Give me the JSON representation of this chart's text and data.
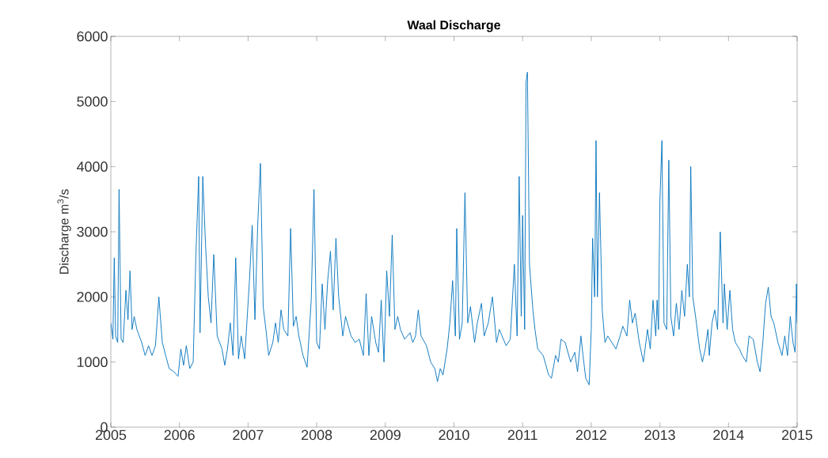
{
  "chart_data": {
    "type": "line",
    "title": "Waal Discharge",
    "ylabel": "Discharge m$^{3}$/s",
    "xlim": [
      2005,
      2015
    ],
    "ylim": [
      0,
      6000
    ],
    "xticks": [
      2005,
      2006,
      2007,
      2008,
      2009,
      2010,
      2011,
      2012,
      2013,
      2014,
      2015
    ],
    "yticks": [
      0,
      1000,
      2000,
      3000,
      4000,
      5000,
      6000
    ],
    "grid": false,
    "marker": "none",
    "line_style": "solid",
    "series": [
      {
        "color": "#0072bd",
        "x": [
          2005.0,
          2005.03,
          2005.05,
          2005.07,
          2005.1,
          2005.12,
          2005.15,
          2005.18,
          2005.22,
          2005.25,
          2005.28,
          2005.31,
          2005.34,
          2005.38,
          2005.45,
          2005.5,
          2005.55,
          2005.6,
          2005.65,
          2005.7,
          2005.75,
          2005.8,
          2005.85,
          2005.92,
          2005.98,
          2006.02,
          2006.06,
          2006.1,
          2006.15,
          2006.2,
          2006.24,
          2006.28,
          2006.3,
          2006.34,
          2006.38,
          2006.42,
          2006.46,
          2006.5,
          2006.55,
          2006.62,
          2006.66,
          2006.7,
          2006.74,
          2006.78,
          2006.82,
          2006.86,
          2006.9,
          2006.95,
          2007.02,
          2007.06,
          2007.1,
          2007.14,
          2007.18,
          2007.22,
          2007.26,
          2007.3,
          2007.36,
          2007.4,
          2007.44,
          2007.48,
          2007.52,
          2007.58,
          2007.62,
          2007.66,
          2007.7,
          2007.74,
          2007.8,
          2007.86,
          2007.92,
          2007.96,
          2008.0,
          2008.04,
          2008.08,
          2008.12,
          2008.16,
          2008.2,
          2008.24,
          2008.28,
          2008.32,
          2008.38,
          2008.42,
          2008.5,
          2008.56,
          2008.62,
          2008.68,
          2008.72,
          2008.76,
          2008.8,
          2008.86,
          2008.9,
          2008.94,
          2008.98,
          2009.02,
          2009.06,
          2009.1,
          2009.14,
          2009.18,
          2009.22,
          2009.28,
          2009.36,
          2009.4,
          2009.44,
          2009.48,
          2009.52,
          2009.6,
          2009.66,
          2009.72,
          2009.76,
          2009.8,
          2009.84,
          2009.9,
          2009.94,
          2009.98,
          2010.02,
          2010.04,
          2010.08,
          2010.12,
          2010.16,
          2010.2,
          2010.24,
          2010.3,
          2010.34,
          2010.4,
          2010.44,
          2010.5,
          2010.56,
          2010.62,
          2010.66,
          2010.7,
          2010.76,
          2010.82,
          2010.88,
          2010.92,
          2010.95,
          2010.98,
          2011.0,
          2011.03,
          2011.05,
          2011.07,
          2011.1,
          2011.15,
          2011.18,
          2011.22,
          2011.3,
          2011.38,
          2011.42,
          2011.48,
          2011.52,
          2011.56,
          2011.62,
          2011.66,
          2011.7,
          2011.76,
          2011.8,
          2011.85,
          2011.88,
          2011.92,
          2011.97,
          2012.0,
          2012.02,
          2012.05,
          2012.07,
          2012.09,
          2012.12,
          2012.16,
          2012.2,
          2012.24,
          2012.3,
          2012.36,
          2012.42,
          2012.46,
          2012.52,
          2012.56,
          2012.6,
          2012.64,
          2012.7,
          2012.76,
          2012.82,
          2012.86,
          2012.9,
          2012.94,
          2012.96,
          2012.98,
          2013.0,
          2013.03,
          2013.06,
          2013.1,
          2013.13,
          2013.16,
          2013.2,
          2013.24,
          2013.28,
          2013.32,
          2013.36,
          2013.4,
          2013.43,
          2013.45,
          2013.48,
          2013.52,
          2013.58,
          2013.62,
          2013.66,
          2013.7,
          2013.72,
          2013.76,
          2013.8,
          2013.84,
          2013.88,
          2013.92,
          2013.94,
          2013.98,
          2014.02,
          2014.06,
          2014.1,
          2014.16,
          2014.2,
          2014.26,
          2014.3,
          2014.36,
          2014.42,
          2014.46,
          2014.5,
          2014.54,
          2014.58,
          2014.62,
          2014.66,
          2014.72,
          2014.78,
          2014.82,
          2014.86,
          2014.9,
          2014.94,
          2014.97,
          2014.99,
          2015.0
        ],
        "values": [
          1600,
          1350,
          2600,
          1400,
          1300,
          3650,
          1350,
          1300,
          2100,
          1650,
          2400,
          1500,
          1700,
          1500,
          1300,
          1100,
          1250,
          1100,
          1250,
          2000,
          1300,
          1100,
          900,
          850,
          780,
          1200,
          950,
          1250,
          900,
          1000,
          2650,
          3850,
          1450,
          3850,
          2800,
          2000,
          1600,
          2650,
          1400,
          1200,
          950,
          1200,
          1600,
          1100,
          2600,
          1050,
          1400,
          1050,
          2250,
          3100,
          1650,
          3100,
          4050,
          1850,
          1500,
          1100,
          1300,
          1600,
          1300,
          1800,
          1500,
          1400,
          3050,
          1550,
          1700,
          1400,
          1100,
          920,
          1950,
          3650,
          1300,
          1200,
          2200,
          1500,
          2250,
          2700,
          1800,
          2900,
          2000,
          1400,
          1700,
          1400,
          1300,
          1350,
          1100,
          2050,
          1100,
          1700,
          1300,
          1150,
          1950,
          1000,
          2400,
          1700,
          2950,
          1500,
          1700,
          1500,
          1350,
          1450,
          1300,
          1400,
          1800,
          1400,
          1250,
          1000,
          900,
          700,
          900,
          800,
          1200,
          1600,
          2250,
          1400,
          3050,
          1350,
          1600,
          3600,
          1600,
          1850,
          1300,
          1600,
          1900,
          1400,
          1600,
          2000,
          1300,
          1500,
          1400,
          1250,
          1350,
          2500,
          1400,
          3850,
          1700,
          3250,
          1500,
          5300,
          5450,
          2500,
          1800,
          1500,
          1200,
          1100,
          800,
          750,
          1100,
          1000,
          1350,
          1300,
          1150,
          1000,
          1150,
          850,
          1400,
          1100,
          750,
          650,
          1500,
          2900,
          2000,
          4400,
          2000,
          3600,
          1800,
          1300,
          1400,
          1300,
          1200,
          1400,
          1550,
          1400,
          1950,
          1600,
          1750,
          1300,
          1000,
          1500,
          1200,
          1950,
          1400,
          1950,
          1500,
          3450,
          4400,
          1600,
          1500,
          4100,
          1700,
          1400,
          1900,
          1500,
          2100,
          1700,
          2500,
          2000,
          4000,
          2000,
          1700,
          1200,
          1000,
          1200,
          1500,
          1100,
          1600,
          1800,
          1500,
          3000,
          1600,
          2200,
          1500,
          2100,
          1500,
          1300,
          1200,
          1100,
          1000,
          1400,
          1350,
          1000,
          850,
          1300,
          1900,
          2150,
          1700,
          1600,
          1300,
          1100,
          1400,
          1100,
          1700,
          1300,
          1150,
          2200,
          1600
        ]
      }
    ]
  }
}
